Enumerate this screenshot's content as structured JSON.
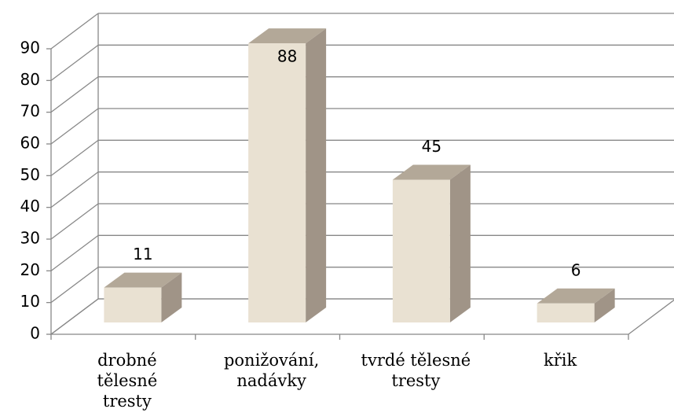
{
  "chart_data": {
    "type": "bar3d",
    "categories": [
      "drobné tělesné tresty",
      "ponižování, nadávky",
      "tvrdé tělesné tresty",
      "křik"
    ],
    "values": [
      11,
      88,
      45,
      6
    ],
    "color": "#e9e1d2",
    "ylim": [
      0,
      90
    ],
    "yticks": [
      0,
      10,
      20,
      30,
      40,
      50,
      60,
      70,
      80,
      90
    ],
    "grid": true
  }
}
